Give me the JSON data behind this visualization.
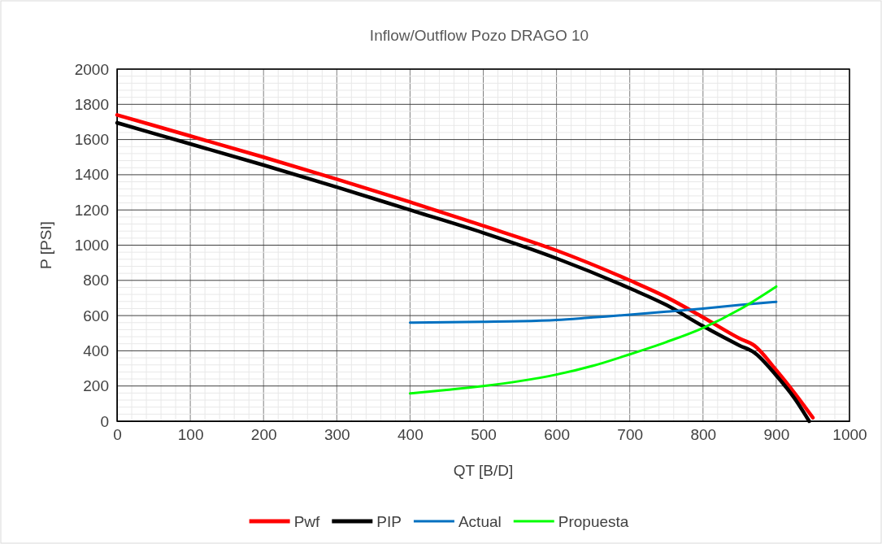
{
  "chart_data": {
    "type": "line",
    "title": "Inflow/Outflow Pozo DRAGO 10",
    "xlabel": "QT [B/D]",
    "ylabel": "P [PSI]",
    "xlim": [
      0,
      1000
    ],
    "xticks": [
      0,
      100,
      200,
      300,
      400,
      500,
      600,
      700,
      800,
      900,
      1000
    ],
    "ylim": [
      0,
      2000
    ],
    "yticks": [
      0,
      200,
      400,
      600,
      800,
      1000,
      1200,
      1400,
      1600,
      1800,
      2000
    ],
    "grid": true,
    "legend": "bottom",
    "marker": "none",
    "line_style": "solid",
    "series": [
      {
        "name": "Pwf",
        "color": "#ff0000",
        "x": [
          0,
          100,
          200,
          300,
          400,
          500,
          600,
          700,
          750,
          800,
          850,
          870,
          900,
          925,
          950
        ],
        "values": [
          1740,
          1620,
          1500,
          1375,
          1245,
          1110,
          970,
          800,
          705,
          590,
          470,
          430,
          290,
          160,
          20
        ]
      },
      {
        "name": "PIP",
        "color": "#000000",
        "x": [
          0,
          100,
          200,
          300,
          400,
          500,
          600,
          700,
          750,
          800,
          850,
          870,
          900,
          925,
          945
        ],
        "values": [
          1695,
          1575,
          1455,
          1330,
          1200,
          1070,
          925,
          755,
          660,
          540,
          430,
          390,
          260,
          130,
          0
        ]
      },
      {
        "name": "Actual",
        "color": "#0070c0",
        "x": [
          400,
          500,
          550,
          600,
          650,
          700,
          750,
          800,
          850,
          900
        ],
        "values": [
          560,
          565,
          568,
          575,
          590,
          605,
          622,
          640,
          660,
          678
        ]
      },
      {
        "name": "Propuesta",
        "color": "#00ff00",
        "x": [
          400,
          450,
          500,
          550,
          600,
          650,
          700,
          750,
          800,
          850,
          900
        ],
        "values": [
          158,
          178,
          200,
          228,
          265,
          315,
          380,
          450,
          530,
          635,
          765
        ]
      }
    ]
  }
}
